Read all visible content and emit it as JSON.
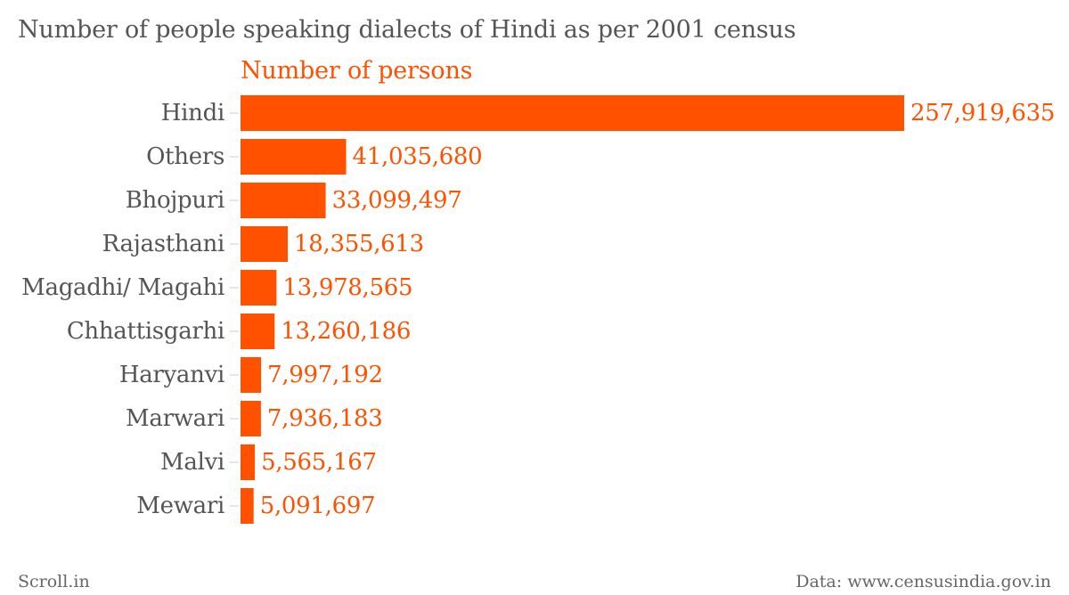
{
  "header": {
    "title": "Number of people speaking dialects of Hindi as per 2001 census",
    "series_label": "Number of persons"
  },
  "footer": {
    "source_left": "Scroll.in",
    "source_right": "Data: www.censusindia.gov.in"
  },
  "colors": {
    "accent": "#ff5100",
    "text": "#555555",
    "tick": "#cccccc"
  },
  "chart_data": {
    "type": "bar",
    "orientation": "horizontal",
    "title": "Number of people speaking dialects of Hindi as per 2001 census",
    "xlabel": "",
    "ylabel": "",
    "grid": false,
    "categories": [
      "Hindi",
      "Others",
      "Bhojpuri",
      "Rajasthani",
      "Magadhi/ Magahi",
      "Chhattisgarhi",
      "Haryanvi",
      "Marwari",
      "Malvi",
      "Mewari"
    ],
    "series": [
      {
        "name": "Number of persons",
        "values": [
          257919635,
          41035680,
          33099497,
          18355613,
          13978565,
          13260186,
          7997192,
          7936183,
          5565167,
          5091697
        ]
      }
    ],
    "value_labels": [
      "257,919,635",
      "41,035,680",
      "33,099,497",
      "18,355,613",
      "13,978,565",
      "13,260,186",
      "7,997,192",
      "7,936,183",
      "5,565,167",
      "5,091,697"
    ],
    "xlim": [
      0,
      257919635
    ]
  }
}
